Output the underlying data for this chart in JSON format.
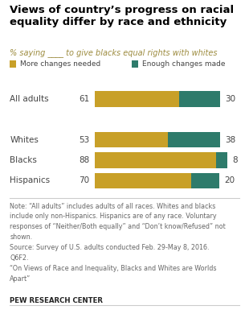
{
  "title": "Views of country’s progress on racial\nequality differ by race and ethnicity",
  "subtitle": "% saying ____ to give blacks equal rights with whites",
  "categories": [
    "All adults",
    "Whites",
    "Blacks",
    "Hispanics"
  ],
  "more_changes": [
    61,
    53,
    88,
    70
  ],
  "enough_changes": [
    30,
    38,
    8,
    20
  ],
  "color_more": "#C8A028",
  "color_enough": "#2E7B6B",
  "legend_more": "More changes needed",
  "legend_enough": "Enough changes made",
  "note_line1": "Note: “All adults” includes adults of all races. Whites and blacks",
  "note_line2": "include only non-Hispanics. Hispanics are of any race. Voluntary",
  "note_line3": "responses of “Neither/Both equally” and “Don’t know/Refused” not",
  "note_line4": "shown.",
  "note_line5": "Source: Survey of U.S. adults conducted Feb. 29-May 8, 2016.",
  "note_line6": "Q6F2.",
  "note_line7": "“On Views of Race and Inequality, Blacks and Whites are Worlds",
  "note_line8": "Apart”",
  "pew": "PEW RESEARCH CENTER",
  "subtitle_color": "#9C8B3E",
  "text_color": "#444444",
  "note_color": "#666666",
  "bg_color": "#ffffff"
}
